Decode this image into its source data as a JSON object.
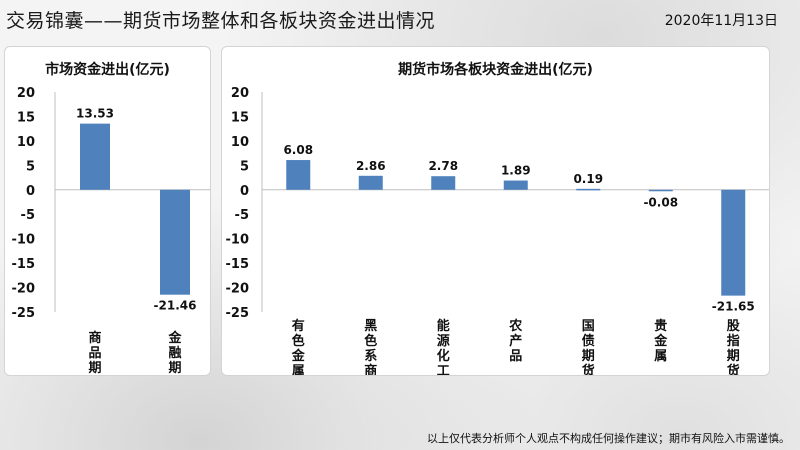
{
  "header": {
    "title": "交易锦囊——期货市场整体和各板块资金进出情况",
    "date": "2020年11月13日"
  },
  "footer": {
    "disclaimer": "以上仅代表分析师个人观点不构成任何操作建议；期市有风险入市需谨慎。"
  },
  "colors": {
    "bar": "#4f81bd"
  },
  "chart_data": [
    {
      "type": "bar",
      "title": "市场资金进出(亿元)",
      "categories": [
        "商品期货",
        "金融期货"
      ],
      "values": [
        13.53,
        -21.46
      ],
      "ylim": [
        -25,
        20
      ],
      "yticks": [
        20,
        15,
        10,
        5,
        0,
        -5,
        -10,
        -15,
        -20,
        -25
      ],
      "grid": false
    },
    {
      "type": "bar",
      "title": "期货市场各板块资金进出(亿元)",
      "categories": [
        "有色金属",
        "黑色系商品",
        "能源化工",
        "农产品",
        "国债期货",
        "贵金属",
        "股指期货"
      ],
      "values": [
        6.08,
        2.86,
        2.78,
        1.89,
        0.19,
        -0.08,
        -21.65
      ],
      "ylim": [
        -25,
        20
      ],
      "yticks": [
        20,
        15,
        10,
        5,
        0,
        -5,
        -10,
        -15,
        -20,
        -25
      ],
      "grid": false
    }
  ]
}
